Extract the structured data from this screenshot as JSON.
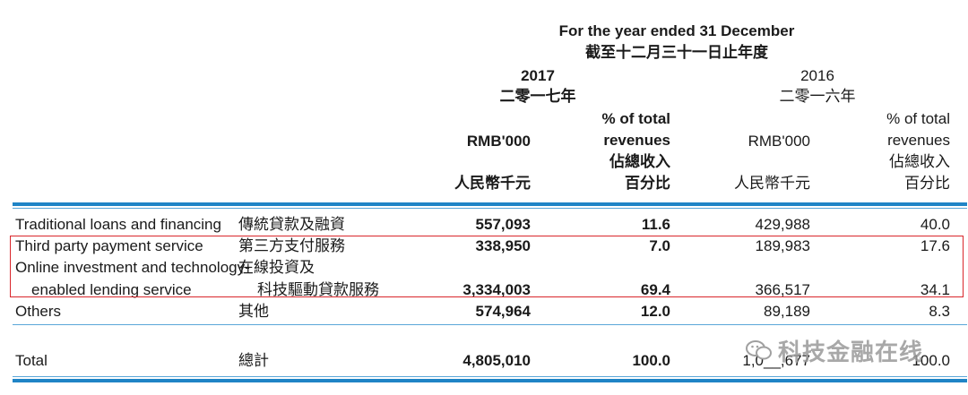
{
  "header": {
    "period_en": "For the year ended 31 December",
    "period_zh": "截至十二月三十一日止年度",
    "year_2017": "2017",
    "year_2017_zh": "二零一七年",
    "year_2016": "2016",
    "year_2016_zh": "二零一六年",
    "cols": {
      "rmb": "RMB'000",
      "rmb_zh": "人民幣千元",
      "pct_line1": "% of total",
      "pct_line2": "revenues",
      "pct_zh1": "佔總收入",
      "pct_zh2": "百分比"
    }
  },
  "rows": [
    {
      "en": "Traditional loans and financing",
      "zh": "傳統貸款及融資",
      "v2017": "557,093",
      "p2017": "11.6",
      "v2016": "429,988",
      "p2016": "40.0"
    },
    {
      "en": "Third party payment service",
      "zh": "第三方支付服務",
      "v2017": "338,950",
      "p2017": "7.0",
      "v2016": "189,983",
      "p2016": "17.6"
    },
    {
      "en": "Online investment and technology-",
      "en2": "enabled lending service",
      "zh": "在線投資及",
      "zh2": "科技驅動貸款服務",
      "v2017": "3,334,003",
      "p2017": "69.4",
      "v2016": "366,517",
      "p2016": "34.1"
    },
    {
      "en": "Others",
      "zh": "其他",
      "v2017": "574,964",
      "p2017": "12.0",
      "v2016": "89,189",
      "p2016": "8.3"
    }
  ],
  "total": {
    "en": "Total",
    "zh": "總計",
    "v2017": "4,805,010",
    "p2017": "100.0",
    "v2016": "1,0__,677",
    "p2016": "100.0"
  },
  "watermark": {
    "text": "科技金融在线"
  },
  "colors": {
    "rule": "#1f84c6",
    "highlight": "#d9262b"
  }
}
